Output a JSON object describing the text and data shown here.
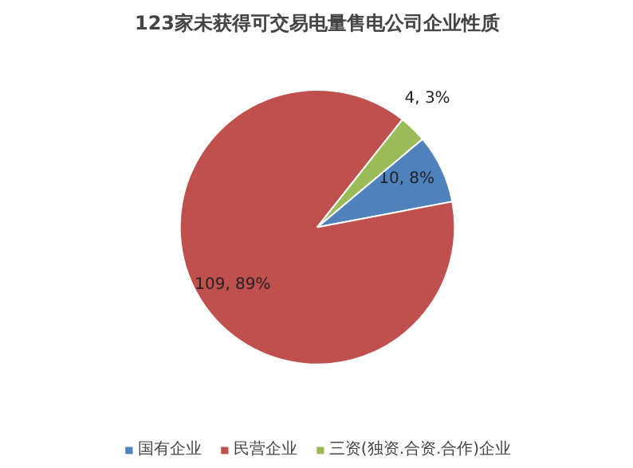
{
  "chart_data": {
    "type": "pie",
    "title": "123家未获得可交易电量售电公司企业性质",
    "categories": [
      "国有企业",
      "民营企业",
      "三资(独资.合资.合作)企业"
    ],
    "values": [
      10,
      109,
      4
    ],
    "colors": [
      "#4f81bd",
      "#c0504d",
      "#9bbb59"
    ],
    "value_labels": [
      "10, 8%",
      "109, 89%",
      "4, 3%"
    ],
    "legend": "bottom"
  }
}
